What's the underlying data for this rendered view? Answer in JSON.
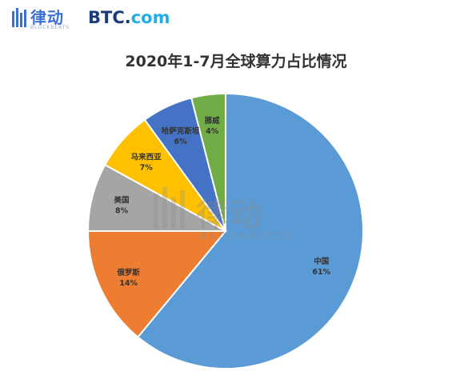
{
  "header": {
    "logo_text": "律动",
    "logo_sub": "BLOCKBEATS",
    "btc_logo_main": "BTC",
    "btc_logo_dot": ".",
    "btc_logo_com": "com"
  },
  "watermark": {
    "text": "律动",
    "sub": "BLOCKBEATS"
  },
  "colors": {
    "china": "#5b9bd5",
    "russia": "#ed7d31",
    "usa": "#a5a5a5",
    "malaysia": "#ffc000",
    "kazakhstan": "#4472c4",
    "norway": "#70ad47"
  },
  "chart_data": {
    "type": "pie",
    "title": "2020年1-7月全球算力占比情况",
    "start_angle_deg": 0,
    "direction": "clockwise",
    "slices": [
      {
        "label": "中国",
        "value": 61,
        "value_label": "61%",
        "color": "#5b9bd5"
      },
      {
        "label": "俄罗斯",
        "value": 14,
        "value_label": "14%",
        "color": "#ed7d31"
      },
      {
        "label": "美国",
        "value": 8,
        "value_label": "8%",
        "color": "#a5a5a5"
      },
      {
        "label": "马来西亚",
        "value": 7,
        "value_label": "7%",
        "color": "#ffc000"
      },
      {
        "label": "哈萨克斯坦",
        "value": 6,
        "value_label": "6%",
        "color": "#4472c4"
      },
      {
        "label": "挪威",
        "value": 4,
        "value_label": "4%",
        "color": "#70ad47"
      }
    ]
  }
}
